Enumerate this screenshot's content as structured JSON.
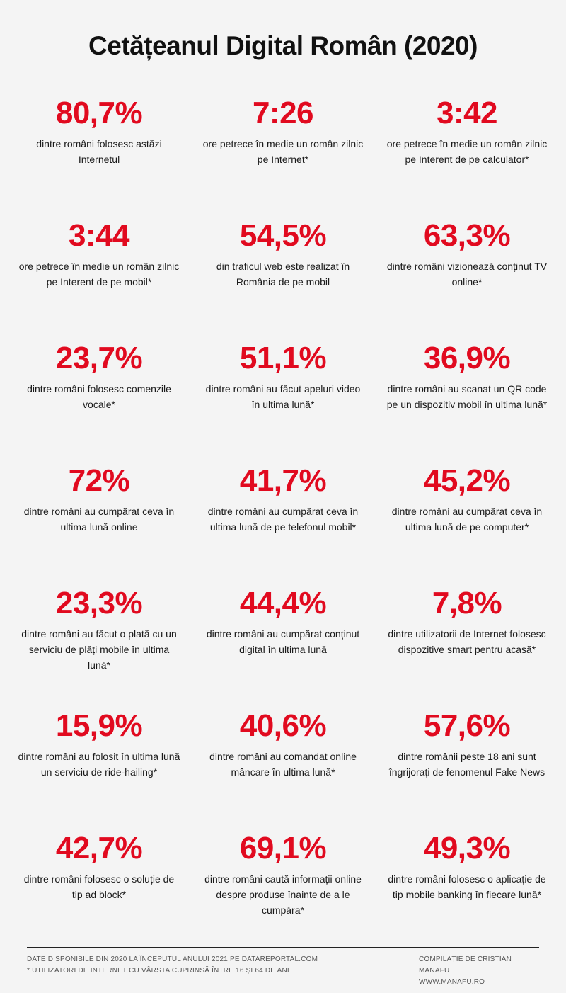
{
  "title": "Cetățeanul Digital Român (2020)",
  "stats": [
    {
      "value": "80,7%",
      "desc": "dintre români folosesc astăzi Internetul"
    },
    {
      "value": "7:26",
      "desc": "ore petrece în medie un român zilnic pe Internet*"
    },
    {
      "value": "3:42",
      "desc": "ore petrece în medie un român zilnic pe Interent de pe calculator*"
    },
    {
      "value": "3:44",
      "desc": "ore petrece în medie un român zilnic pe Interent de pe mobil*"
    },
    {
      "value": "54,5%",
      "desc": "din traficul web este realizat în România de pe mobil"
    },
    {
      "value": "63,3%",
      "desc": "dintre români vizionează conținut TV online*"
    },
    {
      "value": "23,7%",
      "desc": "dintre români folosesc comenzile vocale*"
    },
    {
      "value": "51,1%",
      "desc": "dintre români au făcut apeluri video în ultima lună*"
    },
    {
      "value": "36,9%",
      "desc": "dintre români au scanat un QR code pe un dispozitiv mobil în ultima lună*"
    },
    {
      "value": "72%",
      "desc": "dintre români au cumpărat ceva în ultima lună online"
    },
    {
      "value": "41,7%",
      "desc": "dintre români au cumpărat ceva în ultima lună de pe telefonul mobil*"
    },
    {
      "value": "45,2%",
      "desc": "dintre români au cumpărat ceva în ultima lună de pe computer*"
    },
    {
      "value": "23,3%",
      "desc": "dintre români au făcut o plată cu un serviciu de plăți mobile în ultima lună*"
    },
    {
      "value": "44,4%",
      "desc": "dintre români au cumpărat conținut digital în ultima lună"
    },
    {
      "value": "7,8%",
      "desc": "dintre utilizatorii de Internet folosesc dispozitive smart pentru acasă*"
    },
    {
      "value": "15,9%",
      "desc": "dintre români au folosit în ultima lună un serviciu de ride-hailing*"
    },
    {
      "value": "40,6%",
      "desc": "dintre români au comandat online mâncare în ultima lună*"
    },
    {
      "value": "57,6%",
      "desc": "dintre românii peste 18 ani sunt îngrijorați de fenomenul Fake News"
    },
    {
      "value": "42,7%",
      "desc": "dintre români folosesc o soluție de tip ad block*"
    },
    {
      "value": "69,1%",
      "desc": "dintre români caută informații online despre produse înainte de a le cumpăra*"
    },
    {
      "value": "49,3%",
      "desc": "dintre români folosesc o aplicație de tip mobile banking în fiecare lună*"
    }
  ],
  "footer": {
    "source": "DATE DISPONIBILE DIN 2020 LA ÎNCEPUTUL ANULUI 2021 PE DATAREPORTAL.COM",
    "note": "* UTILIZATORI DE INTERNET CU VÂRSTA CUPRINSĂ ÎNTRE 16 ȘI 64 DE ANI",
    "compiler": "COMPILAȚIE DE CRISTIAN MANAFU",
    "website": "WWW.MANAFU.RO"
  }
}
